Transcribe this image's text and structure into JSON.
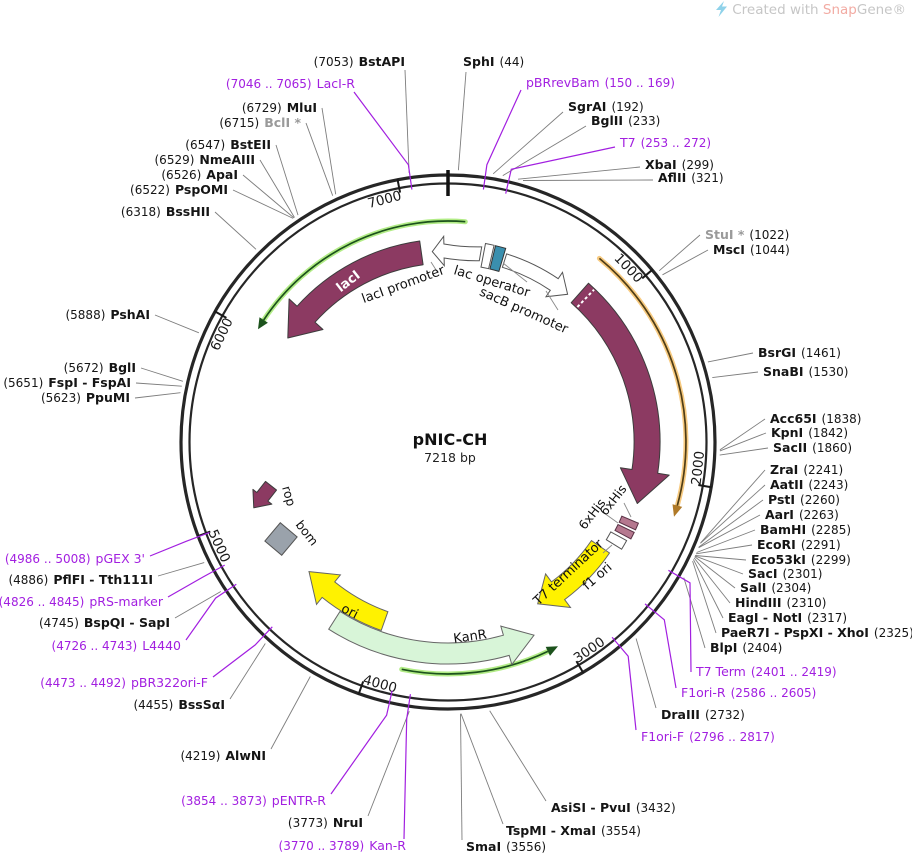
{
  "watermark": {
    "prefix": "Created with ",
    "brand_red": "Snap",
    "brand_suffix": "Gene®"
  },
  "plasmid": {
    "name": "pNIC-CH",
    "size_label": "7218 bp",
    "length_bp": 7218
  },
  "scale": {
    "labels": [
      "1000",
      "2000",
      "3000",
      "4000",
      "5000",
      "6000",
      "7000"
    ]
  },
  "features": [
    {
      "label": "lacI",
      "color": "#8C3A62"
    },
    {
      "label": "lacI promoter",
      "color": "#FFFFFF"
    },
    {
      "label": "lac operator",
      "color": "#3A8FAE"
    },
    {
      "label": "sacB promoter",
      "color": "#FFFFFF"
    },
    {
      "label": "sacB",
      "color": "#8C3A62"
    },
    {
      "label": "6xHis",
      "color": "#B5788F"
    },
    {
      "label": "6xHis",
      "color": "#B5788F"
    },
    {
      "label": "T7 terminator",
      "color": "#FFFFFF"
    },
    {
      "label": "f1 ori",
      "color": "#FFF200"
    },
    {
      "label": "KanR",
      "color": "#D8F5D8"
    },
    {
      "label": "ori",
      "color": "#FFF200"
    },
    {
      "label": "rop",
      "color": "#8C3A62"
    },
    {
      "label": "bom",
      "color": "#9AA2AB"
    }
  ],
  "colors": {
    "primer": "#A21FE0",
    "enzyme_line": "#7d7d7d",
    "backbone": "#262626",
    "orf_green": "#1c521c",
    "orf_green_glow": "#b2ec86",
    "orf_orange": "#4f3d16",
    "orf_orange_glow": "#f7ca80"
  },
  "sites": [
    {
      "label": "SphI",
      "pos": "(44)",
      "kind": "enzyme"
    },
    {
      "label": "pBRrevBam",
      "pos": "(150 .. 169)",
      "kind": "primer"
    },
    {
      "label": "SgrAI",
      "pos": "(192)",
      "kind": "enzyme"
    },
    {
      "label": "BglII",
      "pos": "(233)",
      "kind": "enzyme"
    },
    {
      "label": "T7",
      "pos": "(253 .. 272)",
      "kind": "primer"
    },
    {
      "label": "XbaI",
      "pos": "(299)",
      "kind": "enzyme"
    },
    {
      "label": "AflII",
      "pos": "(321)",
      "kind": "enzyme"
    },
    {
      "label": "StuI *",
      "pos": "(1022)",
      "kind": "dim"
    },
    {
      "label": "MscI",
      "pos": "(1044)",
      "kind": "enzyme"
    },
    {
      "label": "BsrGI",
      "pos": "(1461)",
      "kind": "enzyme"
    },
    {
      "label": "SnaBI",
      "pos": "(1530)",
      "kind": "enzyme"
    },
    {
      "label": "Acc65I",
      "pos": "(1838)",
      "kind": "enzyme"
    },
    {
      "label": "KpnI",
      "pos": "(1842)",
      "kind": "enzyme"
    },
    {
      "label": "SacII",
      "pos": "(1860)",
      "kind": "enzyme"
    },
    {
      "label": "ZraI",
      "pos": "(2241)",
      "kind": "enzyme"
    },
    {
      "label": "AatII",
      "pos": "(2243)",
      "kind": "enzyme"
    },
    {
      "label": "PstI",
      "pos": "(2260)",
      "kind": "enzyme"
    },
    {
      "label": "AarI",
      "pos": "(2263)",
      "kind": "enzyme"
    },
    {
      "label": "BamHI",
      "pos": "(2285)",
      "kind": "enzyme"
    },
    {
      "label": "EcoRI",
      "pos": "(2291)",
      "kind": "enzyme"
    },
    {
      "label": "Eco53kI",
      "pos": "(2299)",
      "kind": "enzyme"
    },
    {
      "label": "SacI",
      "pos": "(2301)",
      "kind": "enzyme"
    },
    {
      "label": "SalI",
      "pos": "(2304)",
      "kind": "enzyme"
    },
    {
      "label": "HindIII",
      "pos": "(2310)",
      "kind": "enzyme"
    },
    {
      "label": "EagI - NotI",
      "pos": "(2317)",
      "kind": "enzyme"
    },
    {
      "label": "PaeR7I - PspXI - XhoI",
      "pos": "(2325)",
      "kind": "enzyme"
    },
    {
      "label": "BlpI",
      "pos": "(2404)",
      "kind": "enzyme"
    },
    {
      "label": "T7 Term",
      "pos": "(2401 .. 2419)",
      "kind": "primer"
    },
    {
      "label": "F1ori-R",
      "pos": "(2586 .. 2605)",
      "kind": "primer"
    },
    {
      "label": "DraIII",
      "pos": "(2732)",
      "kind": "enzyme"
    },
    {
      "label": "F1ori-F",
      "pos": "(2796 .. 2817)",
      "kind": "primer"
    },
    {
      "label": "AsiSI - PvuI",
      "pos": "(3432)",
      "kind": "enzyme"
    },
    {
      "label": "TspMI - XmaI",
      "pos": "(3554)",
      "kind": "enzyme"
    },
    {
      "label": "SmaI",
      "pos": "(3556)",
      "kind": "enzyme"
    },
    {
      "label": "Kan-R",
      "pos": "(3770 .. 3789)",
      "kind": "primer"
    },
    {
      "label": "NruI",
      "pos": "(3773)",
      "kind": "enzyme"
    },
    {
      "label": "pENTR-R",
      "pos": "(3854 .. 3873)",
      "kind": "primer"
    },
    {
      "label": "AlwNI",
      "pos": "(4219)",
      "kind": "enzyme"
    },
    {
      "label": "BssSαI",
      "pos": "(4455)",
      "kind": "enzyme"
    },
    {
      "label": "pBR322ori-F",
      "pos": "(4473 .. 4492)",
      "kind": "primer"
    },
    {
      "label": "L4440",
      "pos": "(4726 .. 4743)",
      "kind": "primer"
    },
    {
      "label": "BspQI - SapI",
      "pos": "(4745)",
      "kind": "enzyme"
    },
    {
      "label": "pRS-marker",
      "pos": "(4826 .. 4845)",
      "kind": "primer"
    },
    {
      "label": "PflFI - Tth111I",
      "pos": "(4886)",
      "kind": "enzyme"
    },
    {
      "label": "pGEX 3'",
      "pos": "(4986 .. 5008)",
      "kind": "primer"
    },
    {
      "label": "PpuMI",
      "pos": "(5623)",
      "kind": "enzyme"
    },
    {
      "label": "FspI - FspAI",
      "pos": "(5651)",
      "kind": "enzyme"
    },
    {
      "label": "BglI",
      "pos": "(5672)",
      "kind": "enzyme"
    },
    {
      "label": "PshAI",
      "pos": "(5888)",
      "kind": "enzyme"
    },
    {
      "label": "BssHII",
      "pos": "(6318)",
      "kind": "enzyme"
    },
    {
      "label": "PspOMI",
      "pos": "(6522)",
      "kind": "enzyme"
    },
    {
      "label": "ApaI",
      "pos": "(6526)",
      "kind": "enzyme"
    },
    {
      "label": "NmeAIII",
      "pos": "(6529)",
      "kind": "enzyme"
    },
    {
      "label": "BstEII",
      "pos": "(6547)",
      "kind": "enzyme"
    },
    {
      "label": "BclI *",
      "pos": "(6715)",
      "kind": "dim"
    },
    {
      "label": "MluI",
      "pos": "(6729)",
      "kind": "enzyme"
    },
    {
      "label": "LacI-R",
      "pos": "(7046 .. 7065)",
      "kind": "primer"
    },
    {
      "label": "BstAPI",
      "pos": "(7053)",
      "kind": "enzyme"
    }
  ]
}
